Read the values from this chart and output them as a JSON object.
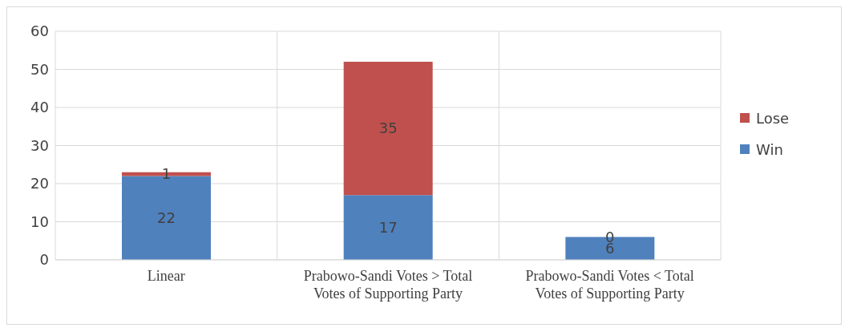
{
  "chart_data": {
    "type": "bar",
    "stacked": true,
    "categories": [
      "Linear",
      "Prabowo-Sandi Votes > Total Votes of Supporting Party",
      "Prabowo-Sandi Votes < Total Votes of Supporting Party"
    ],
    "series": [
      {
        "name": "Win",
        "color": "#4f81bd",
        "values": [
          22,
          17,
          6
        ]
      },
      {
        "name": "Lose",
        "color": "#c0504d",
        "values": [
          1,
          35,
          0
        ]
      }
    ],
    "ylim": [
      0,
      60
    ],
    "yticks": [
      0,
      10,
      20,
      30,
      40,
      50,
      60
    ],
    "grid": true,
    "legend": "right",
    "data_labels": true
  }
}
